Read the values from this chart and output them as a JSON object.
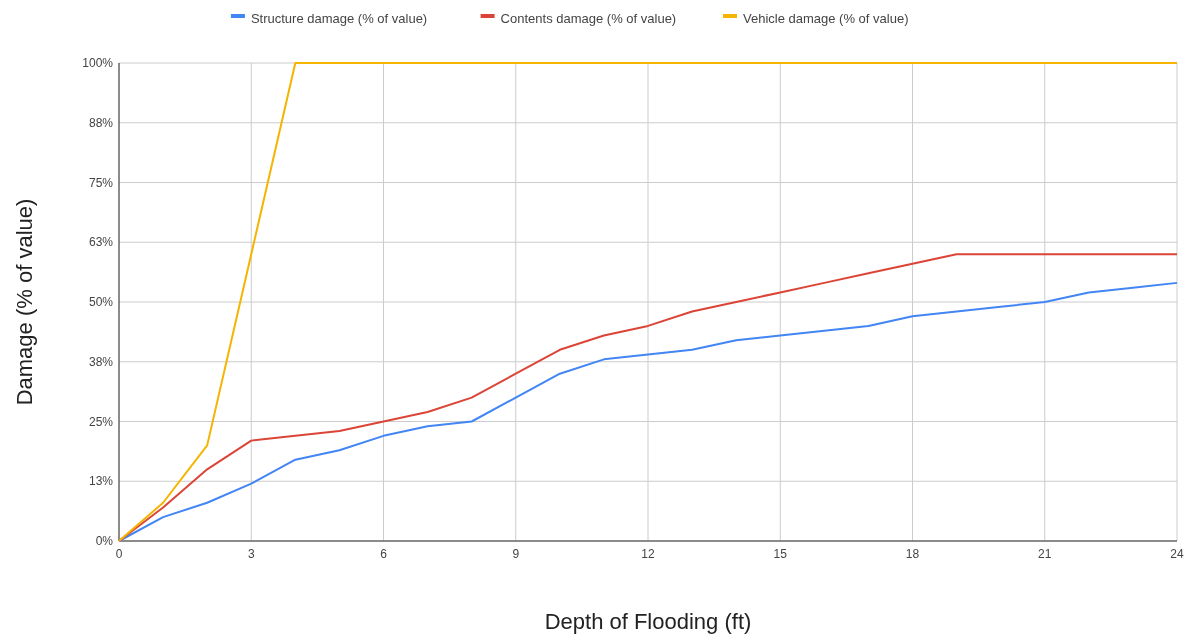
{
  "chart_data": {
    "type": "line",
    "xlabel": "Depth of Flooding (ft)",
    "ylabel": "Damage (% of value)",
    "x": [
      0,
      1,
      2,
      3,
      4,
      5,
      6,
      7,
      8,
      9,
      10,
      11,
      12,
      13,
      14,
      15,
      16,
      17,
      18,
      19,
      20,
      21,
      22,
      23,
      24
    ],
    "series": [
      {
        "name": "Structure damage (% of value)",
        "color": "#4285f4",
        "values": [
          0,
          5,
          8,
          12,
          17,
          19,
          22,
          24,
          25,
          30,
          35,
          38,
          39,
          40,
          42,
          43,
          44,
          45,
          47,
          48,
          49,
          50,
          52,
          53,
          54
        ]
      },
      {
        "name": "Contents damage (% of value)",
        "color": "#db4437",
        "values": [
          0,
          7,
          15,
          21,
          22,
          23,
          25,
          27,
          30,
          35,
          40,
          43,
          45,
          48,
          50,
          52,
          54,
          56,
          58,
          60,
          60,
          60,
          60,
          60,
          60
        ]
      },
      {
        "name": "Vehicle damage (% of value)",
        "color": "#f4b400",
        "values": [
          0,
          8,
          20,
          60,
          100,
          100,
          100,
          100,
          100,
          100,
          100,
          100,
          100,
          100,
          100,
          100,
          100,
          100,
          100,
          100,
          100,
          100,
          100,
          100,
          100
        ]
      }
    ],
    "xlim": [
      0,
      24
    ],
    "xticks": [
      0,
      3,
      6,
      9,
      12,
      15,
      18,
      21,
      24
    ],
    "ylim": [
      0,
      100
    ],
    "yticks": [
      {
        "value": 0,
        "label": "0%"
      },
      {
        "value": 12.5,
        "label": "13%"
      },
      {
        "value": 25,
        "label": "25%"
      },
      {
        "value": 37.5,
        "label": "38%"
      },
      {
        "value": 50,
        "label": "50%"
      },
      {
        "value": 62.5,
        "label": "63%"
      },
      {
        "value": 75,
        "label": "75%"
      },
      {
        "value": 87.5,
        "label": "88%"
      },
      {
        "value": 100,
        "label": "100%"
      }
    ],
    "grid": true,
    "legend": "top",
    "marker": "none",
    "line_style": "solid"
  }
}
